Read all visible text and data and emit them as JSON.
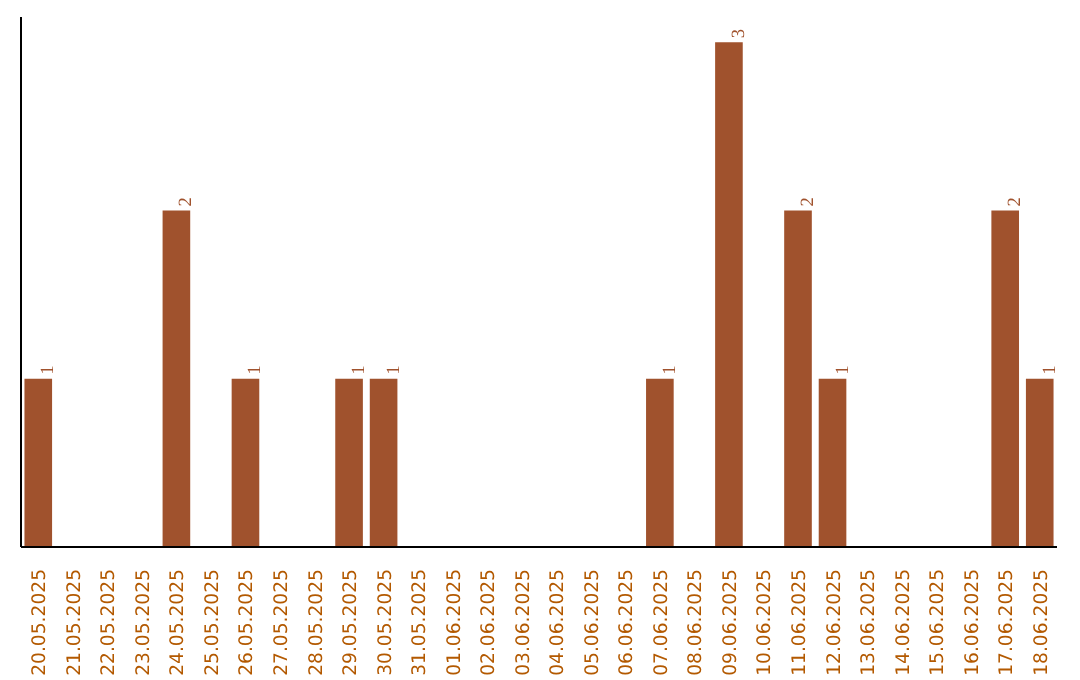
{
  "chart_data": {
    "type": "bar",
    "categories": [
      "20.05.2025",
      "21.05.2025",
      "22.05.2025",
      "23.05.2025",
      "24.05.2025",
      "25.05.2025",
      "26.05.2025",
      "27.05.2025",
      "28.05.2025",
      "29.05.2025",
      "30.05.2025",
      "31.05.2025",
      "01.06.2025",
      "02.06.2025",
      "03.06.2025",
      "04.06.2025",
      "05.06.2025",
      "06.06.2025",
      "07.06.2025",
      "08.06.2025",
      "09.06.2025",
      "10.06.2025",
      "11.06.2025",
      "12.06.2025",
      "13.06.2025",
      "14.06.2025",
      "15.06.2025",
      "16.06.2025",
      "17.06.2025",
      "18.06.2025"
    ],
    "values": [
      1,
      0,
      0,
      0,
      2,
      0,
      1,
      0,
      0,
      1,
      1,
      0,
      0,
      0,
      0,
      0,
      0,
      0,
      1,
      0,
      3,
      0,
      2,
      1,
      0,
      0,
      0,
      0,
      2,
      1
    ],
    "value_labels": [
      "1",
      null,
      null,
      null,
      "2",
      null,
      "1",
      null,
      null,
      "1",
      "1",
      null,
      null,
      null,
      null,
      null,
      null,
      null,
      "1",
      null,
      "3",
      null,
      "2",
      "1",
      null,
      null,
      null,
      null,
      "2",
      "1"
    ],
    "color": "#a0522d",
    "tick_labels": "x"
  }
}
